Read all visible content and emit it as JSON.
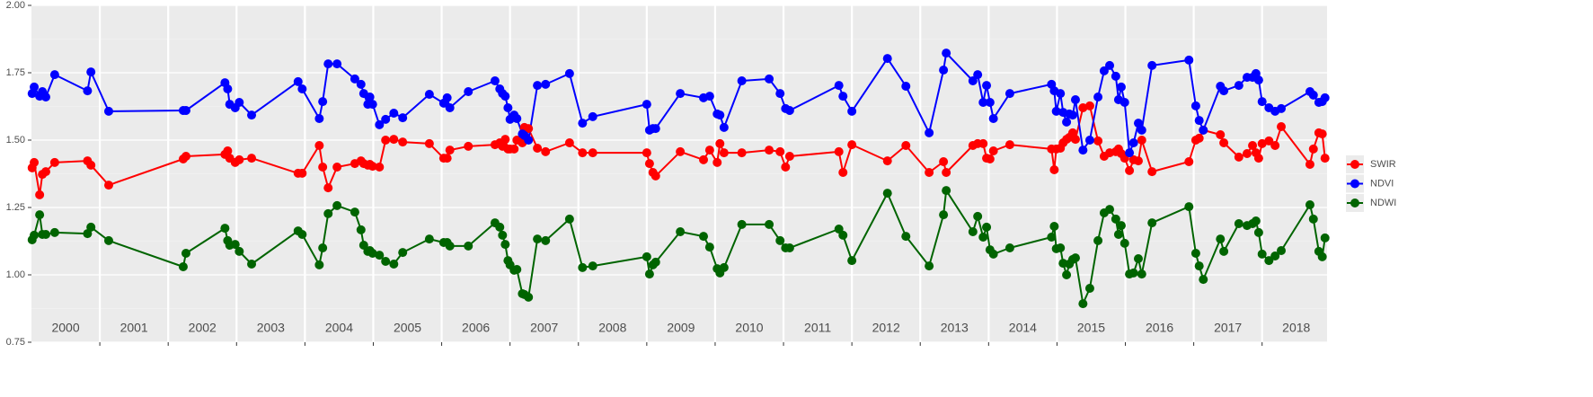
{
  "chart_data": {
    "type": "line",
    "x": [
      2000.01,
      2000.04,
      2000.12,
      2000.16,
      2000.21,
      2000.34,
      2000.82,
      2000.87,
      2001.13,
      2002.22,
      2002.26,
      2002.83,
      2002.87,
      2002.9,
      2002.98,
      2003.04,
      2003.22,
      2003.9,
      2003.96,
      2004.21,
      2004.26,
      2004.34,
      2004.47,
      2004.73,
      2004.82,
      2004.86,
      2004.92,
      2004.95,
      2004.99,
      2005.09,
      2005.18,
      2005.3,
      2005.43,
      2005.82,
      2006.03,
      2006.08,
      2006.12,
      2006.39,
      2006.78,
      2006.85,
      2006.89,
      2006.93,
      2006.97,
      2007.0,
      2007.06,
      2007.1,
      2007.18,
      2007.21,
      2007.27,
      2007.4,
      2007.52,
      2007.87,
      2008.06,
      2008.21,
      2009.0,
      2009.04,
      2009.09,
      2009.13,
      2009.49,
      2009.83,
      2009.92,
      2010.03,
      2010.07,
      2010.13,
      2010.39,
      2010.79,
      2010.95,
      2011.03,
      2011.09,
      2011.81,
      2011.87,
      2012.0,
      2012.52,
      2012.79,
      2013.13,
      2013.34,
      2013.38,
      2013.77,
      2013.84,
      2013.92,
      2013.97,
      2014.02,
      2014.07,
      2014.31,
      2014.92,
      2014.96,
      2014.99,
      2015.05,
      2015.09,
      2015.14,
      2015.18,
      2015.23,
      2015.27,
      2015.38,
      2015.48,
      2015.6,
      2015.69,
      2015.77,
      2015.86,
      2015.9,
      2015.94,
      2015.99,
      2016.06,
      2016.12,
      2016.19,
      2016.24,
      2016.39,
      2016.93,
      2017.03,
      2017.08,
      2017.14,
      2017.39,
      2017.44,
      2017.66,
      2017.78,
      2017.86,
      2017.91,
      2017.95,
      2018.0,
      2018.1,
      2018.19,
      2018.28,
      2018.7,
      2018.75,
      2018.83,
      2018.88,
      2018.92
    ],
    "series": [
      {
        "name": "SWIR",
        "color": "#ff0000",
        "values": [
          1.397,
          1.417,
          1.297,
          1.373,
          1.383,
          1.417,
          1.423,
          1.407,
          1.333,
          1.43,
          1.44,
          1.447,
          1.46,
          1.433,
          1.417,
          1.427,
          1.433,
          1.377,
          1.377,
          1.48,
          1.4,
          1.323,
          1.4,
          1.413,
          1.423,
          1.413,
          1.407,
          1.41,
          1.403,
          1.4,
          1.5,
          1.503,
          1.493,
          1.487,
          1.433,
          1.433,
          1.463,
          1.477,
          1.483,
          1.49,
          1.477,
          1.503,
          1.467,
          1.467,
          1.467,
          1.5,
          1.49,
          1.547,
          1.543,
          1.47,
          1.457,
          1.49,
          1.453,
          1.453,
          1.453,
          1.413,
          1.38,
          1.367,
          1.457,
          1.427,
          1.463,
          1.417,
          1.487,
          1.453,
          1.453,
          1.463,
          1.457,
          1.4,
          1.44,
          1.457,
          1.38,
          1.483,
          1.423,
          1.48,
          1.38,
          1.42,
          1.38,
          1.48,
          1.487,
          1.487,
          1.433,
          1.43,
          1.46,
          1.483,
          1.467,
          1.39,
          1.467,
          1.47,
          1.49,
          1.503,
          1.51,
          1.527,
          1.503,
          1.62,
          1.627,
          1.497,
          1.44,
          1.453,
          1.457,
          1.467,
          1.45,
          1.433,
          1.387,
          1.427,
          1.423,
          1.5,
          1.383,
          1.42,
          1.5,
          1.507,
          1.537,
          1.52,
          1.49,
          1.437,
          1.45,
          1.48,
          1.453,
          1.433,
          1.487,
          1.497,
          1.48,
          1.55,
          1.41,
          1.467,
          1.527,
          1.523,
          1.433
        ]
      },
      {
        "name": "NDVI",
        "color": "#0000ff",
        "values": [
          1.673,
          1.697,
          1.663,
          1.68,
          1.66,
          1.743,
          1.683,
          1.753,
          1.607,
          1.61,
          1.61,
          1.713,
          1.69,
          1.633,
          1.62,
          1.64,
          1.593,
          1.717,
          1.69,
          1.58,
          1.643,
          1.783,
          1.783,
          1.727,
          1.707,
          1.673,
          1.633,
          1.66,
          1.633,
          1.557,
          1.577,
          1.6,
          1.583,
          1.67,
          1.637,
          1.657,
          1.62,
          1.68,
          1.72,
          1.69,
          1.673,
          1.663,
          1.62,
          1.577,
          1.593,
          1.58,
          1.523,
          1.517,
          1.5,
          1.703,
          1.707,
          1.747,
          1.563,
          1.587,
          1.633,
          1.537,
          1.543,
          1.543,
          1.673,
          1.657,
          1.663,
          1.597,
          1.593,
          1.547,
          1.72,
          1.727,
          1.673,
          1.617,
          1.61,
          1.703,
          1.663,
          1.607,
          1.803,
          1.7,
          1.527,
          1.76,
          1.823,
          1.72,
          1.743,
          1.64,
          1.703,
          1.64,
          1.58,
          1.673,
          1.707,
          1.683,
          1.607,
          1.673,
          1.603,
          1.567,
          1.597,
          1.593,
          1.65,
          1.463,
          1.5,
          1.66,
          1.757,
          1.777,
          1.737,
          1.65,
          1.697,
          1.64,
          1.453,
          1.49,
          1.563,
          1.537,
          1.777,
          1.797,
          1.627,
          1.573,
          1.537,
          1.7,
          1.683,
          1.703,
          1.733,
          1.733,
          1.747,
          1.723,
          1.643,
          1.62,
          1.607,
          1.617,
          1.68,
          1.667,
          1.64,
          1.643,
          1.657
        ]
      },
      {
        "name": "NDWI",
        "color": "#006400",
        "values": [
          1.13,
          1.147,
          1.223,
          1.15,
          1.15,
          1.157,
          1.153,
          1.177,
          1.127,
          1.03,
          1.08,
          1.173,
          1.127,
          1.11,
          1.113,
          1.087,
          1.04,
          1.163,
          1.15,
          1.037,
          1.1,
          1.227,
          1.257,
          1.233,
          1.167,
          1.11,
          1.087,
          1.09,
          1.08,
          1.073,
          1.05,
          1.04,
          1.083,
          1.133,
          1.12,
          1.12,
          1.107,
          1.107,
          1.193,
          1.177,
          1.147,
          1.113,
          1.053,
          1.037,
          1.017,
          1.02,
          0.93,
          0.927,
          0.917,
          1.133,
          1.127,
          1.207,
          1.027,
          1.033,
          1.067,
          1.003,
          1.037,
          1.047,
          1.16,
          1.143,
          1.103,
          1.023,
          1.007,
          1.027,
          1.187,
          1.187,
          1.127,
          1.1,
          1.1,
          1.17,
          1.147,
          1.053,
          1.303,
          1.143,
          1.033,
          1.223,
          1.313,
          1.16,
          1.217,
          1.14,
          1.177,
          1.093,
          1.077,
          1.1,
          1.14,
          1.18,
          1.097,
          1.1,
          1.043,
          1.0,
          1.04,
          1.057,
          1.063,
          0.893,
          0.95,
          1.127,
          1.23,
          1.243,
          1.207,
          1.15,
          1.183,
          1.117,
          1.003,
          1.007,
          1.06,
          1.003,
          1.193,
          1.253,
          1.08,
          1.033,
          0.983,
          1.133,
          1.087,
          1.19,
          1.183,
          1.19,
          1.2,
          1.157,
          1.077,
          1.053,
          1.07,
          1.09,
          1.26,
          1.207,
          1.087,
          1.067,
          1.137
        ]
      }
    ],
    "xlim": [
      2000,
      2018.95
    ],
    "xticks": [
      2001,
      2002,
      2003,
      2004,
      2005,
      2006,
      2007,
      2008,
      2009,
      2010,
      2011,
      2012,
      2013,
      2014,
      2015,
      2016,
      2017,
      2018
    ],
    "year_labels": [
      {
        "value": 2000.5,
        "label": "2000"
      },
      {
        "value": 2001.5,
        "label": "2001"
      },
      {
        "value": 2002.5,
        "label": "2002"
      },
      {
        "value": 2003.5,
        "label": "2003"
      },
      {
        "value": 2004.5,
        "label": "2004"
      },
      {
        "value": 2005.5,
        "label": "2005"
      },
      {
        "value": 2006.5,
        "label": "2006"
      },
      {
        "value": 2007.5,
        "label": "2007"
      },
      {
        "value": 2008.5,
        "label": "2008"
      },
      {
        "value": 2009.5,
        "label": "2009"
      },
      {
        "value": 2010.5,
        "label": "2010"
      },
      {
        "value": 2011.5,
        "label": "2011"
      },
      {
        "value": 2012.5,
        "label": "2012"
      },
      {
        "value": 2013.5,
        "label": "2013"
      },
      {
        "value": 2014.5,
        "label": "2014"
      },
      {
        "value": 2015.5,
        "label": "2015"
      },
      {
        "value": 2016.5,
        "label": "2016"
      },
      {
        "value": 2017.5,
        "label": "2017"
      },
      {
        "value": 2018.5,
        "label": "2018"
      }
    ],
    "ylim": [
      0.75,
      2.0
    ],
    "yticks": [
      {
        "value": 0.75,
        "label": "0.75"
      },
      {
        "value": 1.0,
        "label": "1.00"
      },
      {
        "value": 1.25,
        "label": "1.25"
      },
      {
        "value": 1.5,
        "label": "1.50"
      },
      {
        "value": 1.75,
        "label": "1.75"
      },
      {
        "value": 2.0,
        "label": "2.00"
      }
    ],
    "grid": true,
    "legend": "right"
  }
}
